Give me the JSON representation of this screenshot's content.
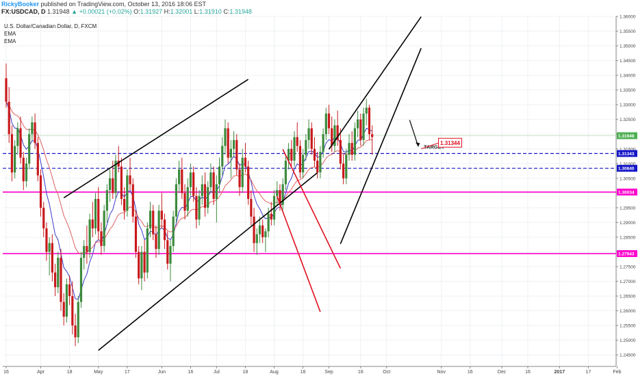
{
  "header": {
    "author": "RickyBooker",
    "published": " published on TradingView.com, October 13, 2016 18:06 EST",
    "symbol": "FX:USDCAD, D",
    "last": "1.31948",
    "change": "+0.00021 (+0.02%)",
    "o_label": "O:",
    "o_value": "1.31927",
    "h_label": "H:",
    "h_value": "1.32001",
    "l_label": "L:",
    "l_value": "1.31910",
    "c_label": "C:",
    "c_value": "1.31948"
  },
  "legend": {
    "title": "U.S. Dollar/Canadian Dollar, D, FXCM",
    "ema1": "EMA",
    "ema2": "EMA"
  },
  "annotations": {
    "target_label": "TARGET",
    "target_box": "1.31344"
  },
  "colors": {
    "up": "#3c8a3c",
    "down": "#c8191c",
    "ema_fast": "#3a3ac8",
    "ema_slow": "#e06060",
    "blue_level": "#1515c8",
    "magenta_level": "#ff00cc",
    "current_price": "#4caf50",
    "trendline": "#000000",
    "red_channel": "#e01020"
  },
  "chart_data": {
    "type": "candlestick",
    "title": "U.S. Dollar/Canadian Dollar, D, FXCM",
    "price_axis": {
      "range": [
        1.2411,
        1.36
      ],
      "ticks": [
        "1.36000",
        "1.35500",
        "1.35000",
        "1.34500",
        "1.34000",
        "1.33500",
        "1.33000",
        "1.32500",
        "1.32000",
        "1.31500",
        "1.31000",
        "1.30500",
        "1.30000",
        "1.29500",
        "1.29000",
        "1.28500",
        "1.28000",
        "1.27500",
        "1.27000",
        "1.26500",
        "1.26000",
        "1.25500",
        "1.25000",
        "1.24500"
      ]
    },
    "time_axis": {
      "labels": [
        {
          "text": "16",
          "i": 0
        },
        {
          "text": "Apr",
          "i": 12
        },
        {
          "text": "18",
          "i": 22
        },
        {
          "text": "May",
          "i": 32
        },
        {
          "text": "17",
          "i": 42
        },
        {
          "text": "Jun",
          "i": 54
        },
        {
          "text": "16",
          "i": 64
        },
        {
          "text": "Jul",
          "i": 73
        },
        {
          "text": "18",
          "i": 83
        },
        {
          "text": "Aug",
          "i": 93
        },
        {
          "text": "16",
          "i": 103
        },
        {
          "text": "Sep",
          "i": 112
        },
        {
          "text": "16",
          "i": 123
        },
        {
          "text": "Oct",
          "i": 132
        },
        {
          "text": "Nov",
          "i": 151
        },
        {
          "text": "16",
          "i": 161
        },
        {
          "text": "Dec",
          "i": 172
        },
        {
          "text": "16",
          "i": 181
        },
        {
          "text": "2017",
          "i": 192
        },
        {
          "text": "17",
          "i": 202
        },
        {
          "text": "Feb",
          "i": 212
        }
      ]
    },
    "horizontal_levels": [
      {
        "price": 1.31343,
        "label": "1.31343",
        "kind": "blue"
      },
      {
        "price": 1.3084,
        "label": "1.30840",
        "kind": "blue"
      },
      {
        "price": 1.30034,
        "label": "1.30034",
        "kind": "magenta"
      },
      {
        "price": 1.27943,
        "label": "1.27943",
        "kind": "magenta"
      },
      {
        "price": 1.31948,
        "label": "1.31948",
        "kind": "current"
      }
    ],
    "trendlines": [
      {
        "kind": "black",
        "from": [
          20,
          1.29839
        ],
        "to": [
          84,
          1.33862
        ]
      },
      {
        "kind": "black",
        "from": [
          32,
          1.24657
        ],
        "to": [
          108,
          1.3069
        ]
      },
      {
        "kind": "black",
        "from": [
          116,
          1.28273
        ],
        "to": [
          144,
          1.34922
        ]
      },
      {
        "kind": "black",
        "from": [
          112,
          1.31486
        ],
        "to": [
          144,
          1.35989
        ]
      },
      {
        "kind": "red",
        "from": [
          96,
          1.31486
        ],
        "to": [
          116,
          1.27441
        ]
      },
      {
        "kind": "red",
        "from": [
          94,
          1.29889
        ],
        "to": [
          109,
          1.25963
        ]
      }
    ],
    "target_arrow": {
      "from": [
        140,
        1.3248
      ],
      "to": [
        143,
        1.3158
      ]
    },
    "candles": [
      [
        1.339,
        1.344,
        1.329,
        1.331
      ],
      [
        1.331,
        1.336,
        1.317,
        1.32
      ],
      [
        1.32,
        1.323,
        1.304,
        1.307
      ],
      [
        1.307,
        1.318,
        1.305,
        1.316
      ],
      [
        1.316,
        1.324,
        1.313,
        1.322
      ],
      [
        1.322,
        1.326,
        1.31,
        1.312
      ],
      [
        1.312,
        1.314,
        1.301,
        1.304
      ],
      [
        1.304,
        1.312,
        1.302,
        1.31
      ],
      [
        1.31,
        1.322,
        1.308,
        1.32
      ],
      [
        1.32,
        1.326,
        1.318,
        1.324
      ],
      [
        1.324,
        1.327,
        1.315,
        1.317
      ],
      [
        1.317,
        1.319,
        1.304,
        1.306
      ],
      [
        1.306,
        1.308,
        1.292,
        1.295
      ],
      [
        1.295,
        1.297,
        1.285,
        1.288
      ],
      [
        1.288,
        1.29,
        1.277,
        1.28
      ],
      [
        1.28,
        1.285,
        1.272,
        1.283
      ],
      [
        1.283,
        1.286,
        1.27,
        1.273
      ],
      [
        1.273,
        1.276,
        1.265,
        1.268
      ],
      [
        1.268,
        1.28,
        1.266,
        1.278
      ],
      [
        1.278,
        1.281,
        1.26,
        1.263
      ],
      [
        1.263,
        1.266,
        1.255,
        1.258
      ],
      [
        1.258,
        1.271,
        1.256,
        1.269
      ],
      [
        1.269,
        1.272,
        1.262,
        1.265
      ],
      [
        1.265,
        1.27,
        1.252,
        1.255
      ],
      [
        1.255,
        1.259,
        1.248,
        1.251
      ],
      [
        1.251,
        1.265,
        1.249,
        1.263
      ],
      [
        1.263,
        1.28,
        1.261,
        1.278
      ],
      [
        1.278,
        1.284,
        1.274,
        1.282
      ],
      [
        1.282,
        1.289,
        1.276,
        1.28
      ],
      [
        1.28,
        1.293,
        1.278,
        1.291
      ],
      [
        1.291,
        1.297,
        1.285,
        1.288
      ],
      [
        1.288,
        1.3,
        1.286,
        1.298
      ],
      [
        1.298,
        1.302,
        1.284,
        1.287
      ],
      [
        1.287,
        1.29,
        1.279,
        1.282
      ],
      [
        1.282,
        1.296,
        1.28,
        1.294
      ],
      [
        1.294,
        1.303,
        1.29,
        1.301
      ],
      [
        1.301,
        1.308,
        1.297,
        1.305
      ],
      [
        1.305,
        1.311,
        1.298,
        1.3
      ],
      [
        1.3,
        1.313,
        1.298,
        1.311
      ],
      [
        1.311,
        1.316,
        1.307,
        1.309
      ],
      [
        1.309,
        1.312,
        1.296,
        1.298
      ],
      [
        1.298,
        1.302,
        1.291,
        1.294
      ],
      [
        1.294,
        1.308,
        1.292,
        1.306
      ],
      [
        1.306,
        1.312,
        1.301,
        1.303
      ],
      [
        1.303,
        1.305,
        1.29,
        1.292
      ],
      [
        1.292,
        1.294,
        1.278,
        1.28
      ],
      [
        1.28,
        1.282,
        1.269,
        1.271
      ],
      [
        1.271,
        1.282,
        1.267,
        1.28
      ],
      [
        1.28,
        1.284,
        1.27,
        1.273
      ],
      [
        1.273,
        1.29,
        1.271,
        1.288
      ],
      [
        1.288,
        1.297,
        1.285,
        1.294
      ],
      [
        1.294,
        1.296,
        1.284,
        1.286
      ],
      [
        1.286,
        1.289,
        1.278,
        1.281
      ],
      [
        1.281,
        1.296,
        1.279,
        1.294
      ],
      [
        1.294,
        1.3,
        1.288,
        1.291
      ],
      [
        1.291,
        1.293,
        1.281,
        1.284
      ],
      [
        1.284,
        1.287,
        1.274,
        1.276
      ],
      [
        1.276,
        1.284,
        1.27,
        1.282
      ],
      [
        1.282,
        1.294,
        1.28,
        1.292
      ],
      [
        1.292,
        1.305,
        1.29,
        1.303
      ],
      [
        1.303,
        1.311,
        1.3,
        1.308
      ],
      [
        1.308,
        1.312,
        1.298,
        1.3
      ],
      [
        1.3,
        1.303,
        1.291,
        1.294
      ],
      [
        1.294,
        1.305,
        1.292,
        1.302
      ],
      [
        1.302,
        1.31,
        1.299,
        1.307
      ],
      [
        1.307,
        1.309,
        1.297,
        1.299
      ],
      [
        1.299,
        1.302,
        1.288,
        1.291
      ],
      [
        1.291,
        1.301,
        1.289,
        1.299
      ],
      [
        1.299,
        1.306,
        1.296,
        1.303
      ],
      [
        1.303,
        1.307,
        1.292,
        1.295
      ],
      [
        1.295,
        1.304,
        1.293,
        1.302
      ],
      [
        1.302,
        1.31,
        1.3,
        1.307
      ],
      [
        1.307,
        1.309,
        1.296,
        1.298
      ],
      [
        1.298,
        1.306,
        1.29,
        1.303
      ],
      [
        1.303,
        1.312,
        1.3,
        1.309
      ],
      [
        1.309,
        1.319,
        1.306,
        1.316
      ],
      [
        1.316,
        1.325,
        1.313,
        1.322
      ],
      [
        1.322,
        1.324,
        1.31,
        1.312
      ],
      [
        1.312,
        1.318,
        1.305,
        1.315
      ],
      [
        1.315,
        1.321,
        1.312,
        1.318
      ],
      [
        1.318,
        1.32,
        1.306,
        1.308
      ],
      [
        1.308,
        1.31,
        1.299,
        1.302
      ],
      [
        1.302,
        1.315,
        1.3,
        1.312
      ],
      [
        1.312,
        1.317,
        1.307,
        1.309
      ],
      [
        1.309,
        1.311,
        1.296,
        1.298
      ],
      [
        1.298,
        1.301,
        1.289,
        1.292
      ],
      [
        1.292,
        1.295,
        1.28,
        1.283
      ],
      [
        1.283,
        1.288,
        1.279,
        1.286
      ],
      [
        1.286,
        1.292,
        1.283,
        1.289
      ],
      [
        1.289,
        1.291,
        1.283,
        1.285
      ],
      [
        1.285,
        1.288,
        1.28,
        1.287
      ],
      [
        1.287,
        1.295,
        1.285,
        1.293
      ],
      [
        1.293,
        1.297,
        1.289,
        1.291
      ],
      [
        1.291,
        1.301,
        1.289,
        1.299
      ],
      [
        1.299,
        1.304,
        1.296,
        1.301
      ],
      [
        1.301,
        1.303,
        1.294,
        1.296
      ],
      [
        1.296,
        1.305,
        1.294,
        1.303
      ],
      [
        1.303,
        1.313,
        1.301,
        1.311
      ],
      [
        1.311,
        1.317,
        1.308,
        1.315
      ],
      [
        1.315,
        1.318,
        1.309,
        1.311
      ],
      [
        1.311,
        1.321,
        1.309,
        1.319
      ],
      [
        1.319,
        1.324,
        1.314,
        1.316
      ],
      [
        1.316,
        1.318,
        1.305,
        1.307
      ],
      [
        1.307,
        1.315,
        1.305,
        1.313
      ],
      [
        1.313,
        1.32,
        1.311,
        1.318
      ],
      [
        1.318,
        1.325,
        1.315,
        1.322
      ],
      [
        1.322,
        1.324,
        1.313,
        1.315
      ],
      [
        1.315,
        1.319,
        1.309,
        1.311
      ],
      [
        1.311,
        1.314,
        1.305,
        1.307
      ],
      [
        1.307,
        1.316,
        1.305,
        1.314
      ],
      [
        1.314,
        1.322,
        1.312,
        1.32
      ],
      [
        1.32,
        1.329,
        1.318,
        1.327
      ],
      [
        1.327,
        1.33,
        1.32,
        1.322
      ],
      [
        1.322,
        1.326,
        1.314,
        1.316
      ],
      [
        1.316,
        1.325,
        1.314,
        1.323
      ],
      [
        1.323,
        1.328,
        1.316,
        1.318
      ],
      [
        1.318,
        1.322,
        1.308,
        1.31
      ],
      [
        1.31,
        1.313,
        1.303,
        1.305
      ],
      [
        1.305,
        1.315,
        1.303,
        1.313
      ],
      [
        1.313,
        1.32,
        1.311,
        1.317
      ],
      [
        1.317,
        1.321,
        1.311,
        1.313
      ],
      [
        1.313,
        1.324,
        1.311,
        1.322
      ],
      [
        1.322,
        1.328,
        1.319,
        1.325
      ],
      [
        1.325,
        1.327,
        1.316,
        1.318
      ],
      [
        1.318,
        1.329,
        1.316,
        1.327
      ],
      [
        1.327,
        1.332,
        1.323,
        1.329
      ],
      [
        1.329,
        1.33,
        1.318,
        1.32
      ],
      [
        1.32,
        1.323,
        1.313,
        1.319
      ]
    ]
  }
}
